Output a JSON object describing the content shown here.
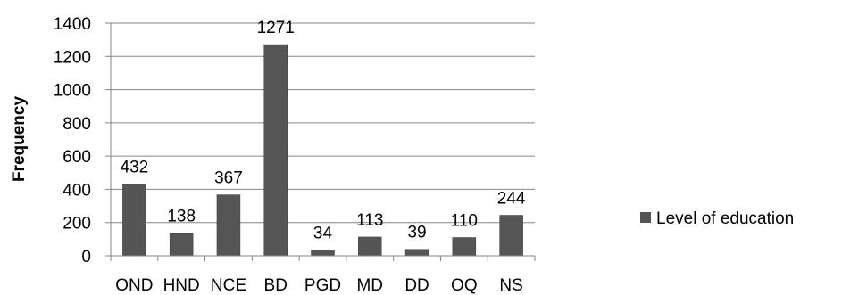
{
  "chart_data": {
    "type": "bar",
    "title": "",
    "xlabel": "",
    "ylabel": "Frequency",
    "ylim": [
      0,
      1400
    ],
    "y_ticks": [
      0,
      200,
      400,
      600,
      800,
      1000,
      1200,
      1400
    ],
    "grid": "horizontal",
    "legend_position": "right",
    "categories": [
      "OND",
      "HND",
      "NCE",
      "BD",
      "PGD",
      "MD",
      "DD",
      "OQ",
      "NS"
    ],
    "series": [
      {
        "name": "Level of education",
        "color": "#555555",
        "values": [
          432,
          138,
          367,
          1271,
          34,
          113,
          39,
          110,
          244
        ]
      }
    ]
  }
}
